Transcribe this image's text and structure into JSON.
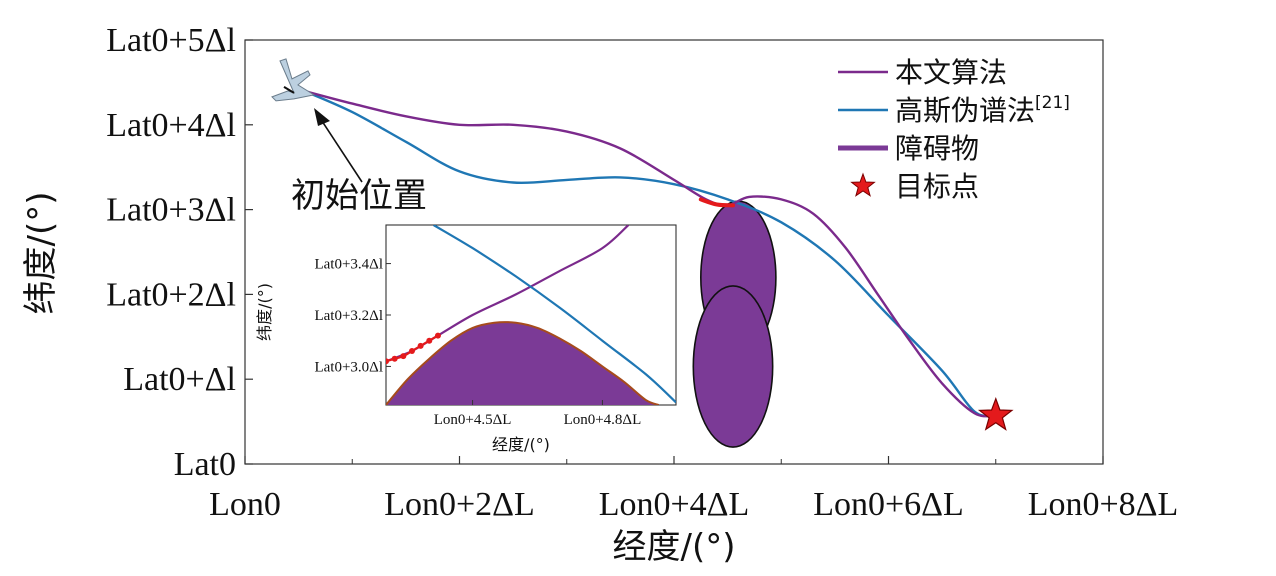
{
  "chart_data": [
    {
      "type": "line",
      "xlabel": "经度/(°)",
      "ylabel": "纬度/(°)",
      "xlim": [
        0,
        8
      ],
      "ylim": [
        0,
        5
      ],
      "x_ticks": [
        {
          "value": 0,
          "label": "Lon0"
        },
        {
          "value": 2,
          "label": "Lon0+2ΔL"
        },
        {
          "value": 4,
          "label": "Lon0+4ΔL"
        },
        {
          "value": 6,
          "label": "Lon0+6ΔL"
        },
        {
          "value": 8,
          "label": "Lon0+8ΔL"
        }
      ],
      "y_ticks": [
        {
          "value": 0,
          "label": "Lat0"
        },
        {
          "value": 1,
          "label": "Lat0+Δl"
        },
        {
          "value": 2,
          "label": "Lat0+2Δl"
        },
        {
          "value": 3,
          "label": "Lat0+3Δl"
        },
        {
          "value": 4,
          "label": "Lat0+4Δl"
        },
        {
          "value": 5,
          "label": "Lat0+5Δl"
        }
      ],
      "legend_position": "top-right",
      "series": [
        {
          "name": "本文算法",
          "color": "#7b2a8c",
          "x": [
            0.55,
            1.0,
            1.5,
            2.0,
            2.5,
            3.0,
            3.5,
            4.0,
            4.3,
            4.5,
            4.7,
            5.0,
            5.3,
            5.6,
            5.9,
            6.2,
            6.5,
            6.8,
            7.0
          ],
          "y": [
            4.4,
            4.25,
            4.1,
            4.0,
            4.0,
            3.92,
            3.72,
            3.35,
            3.12,
            3.05,
            3.15,
            3.12,
            2.95,
            2.55,
            2.0,
            1.45,
            0.95,
            0.6,
            0.57
          ]
        },
        {
          "name": "高斯伪谱法[21]",
          "color": "#1f77b4",
          "x": [
            0.55,
            1.0,
            1.5,
            2.0,
            2.5,
            3.0,
            3.5,
            4.0,
            4.5,
            5.0,
            5.5,
            6.0,
            6.5,
            6.8,
            7.0
          ],
          "y": [
            4.4,
            4.15,
            3.8,
            3.45,
            3.32,
            3.35,
            3.38,
            3.3,
            3.12,
            2.85,
            2.4,
            1.75,
            1.1,
            0.62,
            0.57
          ]
        }
      ],
      "markers": [
        {
          "name": "初始位置",
          "x": 0.55,
          "y": 4.4,
          "shape": "aircraft"
        },
        {
          "name": "目标点",
          "x": 7.0,
          "y": 0.57,
          "shape": "star",
          "color": "#e41a1c"
        }
      ],
      "obstacle": {
        "name": "障碍物",
        "color": "#7b3a96",
        "ellipses": [
          {
            "cx": 4.6,
            "cy": 2.2,
            "rx": 0.35,
            "ry": 0.9
          },
          {
            "cx": 4.55,
            "cy": 1.15,
            "rx": 0.37,
            "ry": 0.95
          }
        ]
      },
      "highlight": {
        "color": "#e41a1c",
        "x": [
          4.25,
          4.4,
          4.55
        ],
        "y": [
          3.12,
          3.06,
          3.05
        ]
      },
      "legend": [
        {
          "label": "本文算法",
          "kind": "line",
          "color": "#7b2a8c"
        },
        {
          "label": "高斯伪谱法",
          "sup": "[21]",
          "kind": "line",
          "color": "#1f77b4"
        },
        {
          "label": "障碍物",
          "kind": "thick",
          "color": "#7b3a96"
        },
        {
          "label": "目标点",
          "kind": "star",
          "color": "#e41a1c"
        }
      ],
      "annotation": {
        "text": "初始位置"
      }
    },
    {
      "type": "line",
      "role": "inset",
      "xlabel": "经度/(°)",
      "ylabel": "纬度/(°)",
      "xlim": [
        4.3,
        4.97
      ],
      "ylim": [
        2.85,
        3.55
      ],
      "x_ticks": [
        {
          "value": 4.5,
          "label": "Lon0+4.5ΔL"
        },
        {
          "value": 4.8,
          "label": "Lon0+4.8ΔL"
        }
      ],
      "y_ticks": [
        {
          "value": 3.0,
          "label": "Lat0+3.0Δl"
        },
        {
          "value": 3.2,
          "label": "Lat0+3.2Δl"
        },
        {
          "value": 3.4,
          "label": "Lat0+3.4Δl"
        }
      ],
      "series": [
        {
          "name": "本文算法",
          "color": "#7b2a8c",
          "x": [
            4.3,
            4.36,
            4.42,
            4.5,
            4.6,
            4.7,
            4.8,
            4.86
          ],
          "y": [
            3.02,
            3.06,
            3.12,
            3.2,
            3.28,
            3.37,
            3.46,
            3.55
          ]
        },
        {
          "name": "高斯伪谱法",
          "color": "#1f77b4",
          "x": [
            4.41,
            4.5,
            4.6,
            4.7,
            4.8,
            4.9,
            4.97
          ],
          "y": [
            3.55,
            3.46,
            3.35,
            3.23,
            3.1,
            2.97,
            2.86
          ]
        }
      ],
      "obstacle_boundary": {
        "color": "#7b3a96",
        "x": [
          4.3,
          4.35,
          4.4,
          4.45,
          4.5,
          4.55,
          4.6,
          4.65,
          4.7,
          4.75,
          4.8,
          4.85,
          4.9,
          4.93
        ],
        "y": [
          2.85,
          2.95,
          3.03,
          3.1,
          3.15,
          3.17,
          3.17,
          3.15,
          3.11,
          3.06,
          3.0,
          2.94,
          2.87,
          2.85
        ]
      },
      "highlight": {
        "color": "#e41a1c",
        "x": [
          4.3,
          4.32,
          4.34,
          4.36,
          4.38,
          4.4,
          4.42
        ],
        "y": [
          3.02,
          3.03,
          3.04,
          3.06,
          3.08,
          3.1,
          3.12
        ]
      }
    }
  ]
}
